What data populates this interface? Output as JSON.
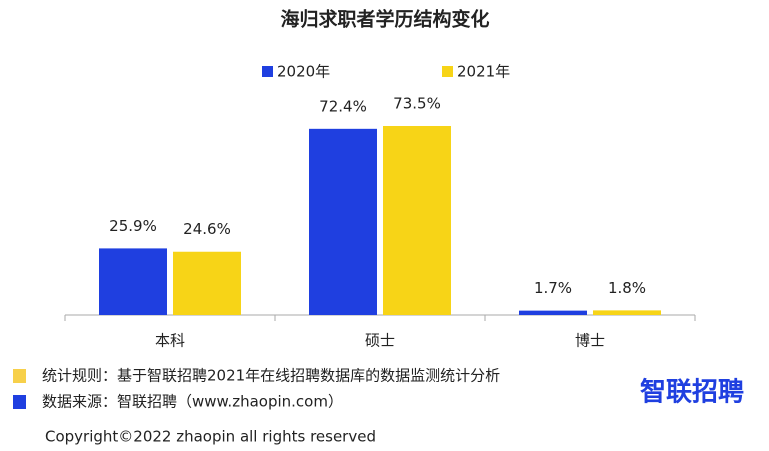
{
  "chart_data": {
    "type": "bar",
    "title": "海归求职者学历结构变化",
    "categories": [
      "本科",
      "硕士",
      "博士"
    ],
    "series": [
      {
        "name": "2020年",
        "color": "#1f3fe0",
        "values": [
          25.9,
          72.4,
          1.7
        ],
        "value_labels": [
          "25.9%",
          "72.4%",
          "1.7%"
        ]
      },
      {
        "name": "2021年",
        "color": "#f7d417",
        "values": [
          24.6,
          73.5,
          1.8
        ],
        "value_labels": [
          "24.6%",
          "73.5%",
          "1.8%"
        ]
      }
    ]
  },
  "notes": [
    {
      "text": "统计规则：基于智联招聘2021年在线招聘数据库的数据监测统计分析",
      "color": "#f7d04a"
    },
    {
      "text": "数据来源：智联招聘（www.zhaopin.com）",
      "color": "#1f3fe0"
    }
  ],
  "logo": "智联招聘",
  "copyright": "Copyright©2022 zhaopin all rights reserved"
}
